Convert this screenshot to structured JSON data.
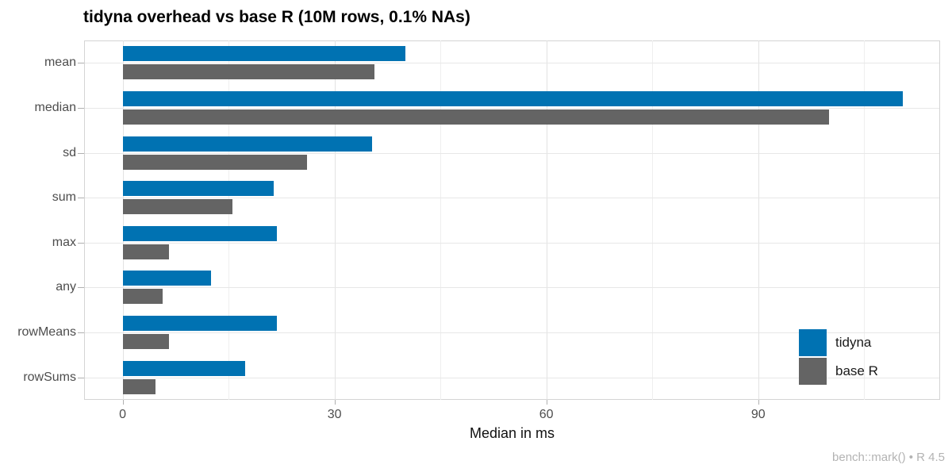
{
  "caption": "bench::mark() • R 4.5",
  "chart_data": {
    "type": "bar",
    "orientation": "horizontal",
    "title": "tidyna overhead vs base R (10M rows, 0.1% NAs)",
    "xlabel": "Median in ms",
    "caption": "bench::mark() • R 4.5",
    "unit": "ms",
    "categories": [
      "mean",
      "median",
      "sd",
      "sum",
      "max",
      "any",
      "rowMeans",
      "rowSums"
    ],
    "series": [
      {
        "name": "tidyna",
        "color": "#0072B2",
        "values": [
          40.0,
          110.5,
          35.3,
          21.4,
          21.9,
          12.5,
          21.8,
          17.3
        ]
      },
      {
        "name": "base R",
        "color": "#646464",
        "values": [
          35.7,
          100.0,
          26.1,
          15.6,
          6.6,
          5.7,
          6.6,
          4.7
        ]
      }
    ],
    "x_major_ticks": [
      0,
      30,
      60,
      90
    ],
    "x_minor_ticks": [
      15,
      45,
      75,
      105
    ],
    "xlim": [
      -5.45,
      115.75
    ],
    "grid": true,
    "legend_position": "inside-right"
  }
}
